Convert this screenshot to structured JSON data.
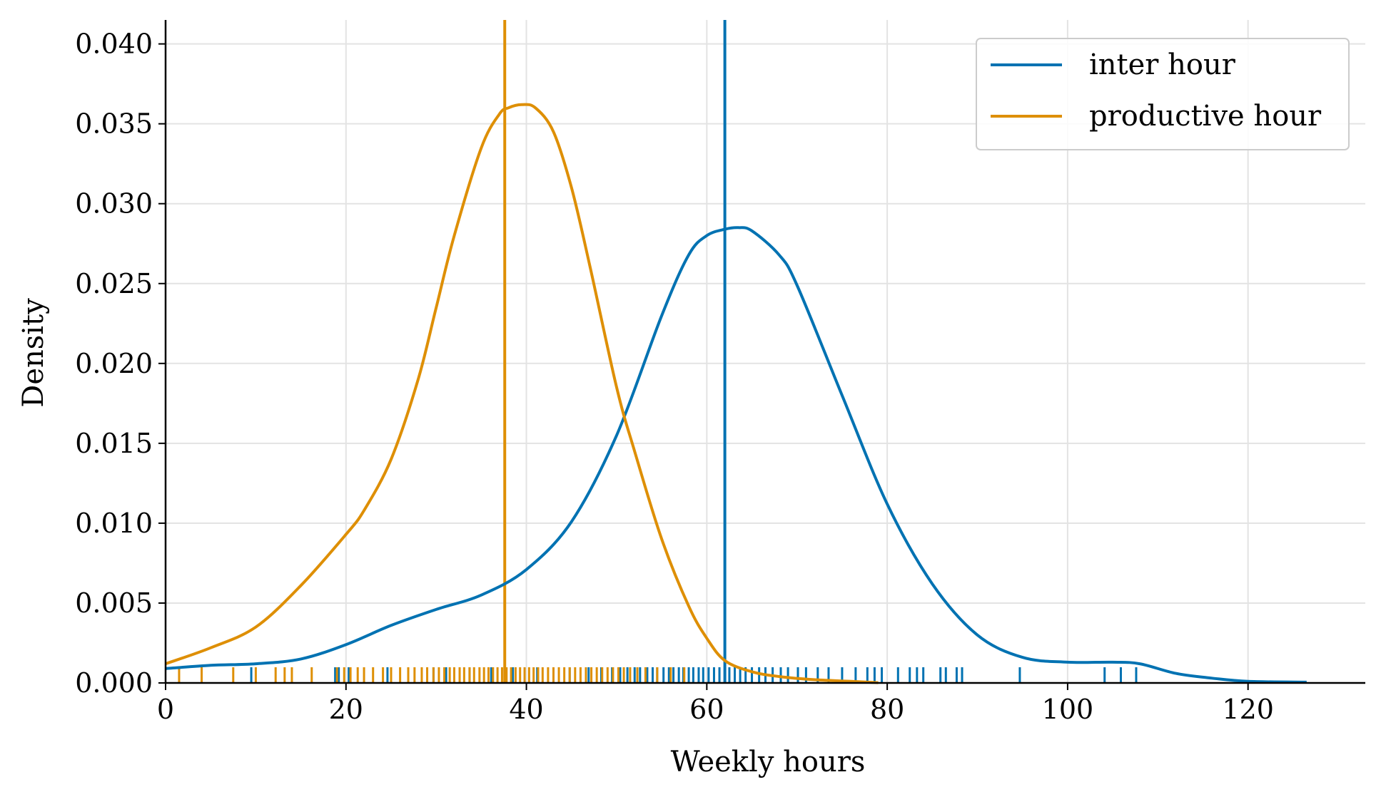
{
  "chart_data": {
    "type": "line",
    "title": "",
    "xlabel": "Weekly hours",
    "ylabel": "Density",
    "xlim": [
      0,
      133
    ],
    "ylim": [
      0,
      0.0415
    ],
    "x_ticks": [
      0,
      20,
      40,
      60,
      80,
      100,
      120
    ],
    "x_tick_labels": [
      "0",
      "20",
      "40",
      "60",
      "80",
      "100",
      "120"
    ],
    "y_ticks": [
      0,
      0.005,
      0.01,
      0.015,
      0.02,
      0.025,
      0.03,
      0.035,
      0.04
    ],
    "y_tick_labels": [
      "0.000",
      "0.005",
      "0.010",
      "0.015",
      "0.020",
      "0.025",
      "0.030",
      "0.035",
      "0.040"
    ],
    "grid": true,
    "legend_position": "top-right",
    "series": [
      {
        "name": "inter hour",
        "color": "#0072b2",
        "mean_line": 62,
        "x": [
          0,
          5,
          10,
          15,
          20,
          25,
          30,
          35,
          40,
          45,
          50,
          55,
          58,
          60,
          62,
          63.5,
          65,
          68,
          70,
          75,
          80,
          85,
          90,
          95,
          100,
          105,
          108,
          112,
          116,
          120,
          126.5
        ],
        "y": [
          0.0009,
          0.0011,
          0.0012,
          0.0015,
          0.0024,
          0.0036,
          0.0046,
          0.0055,
          0.0071,
          0.0101,
          0.0155,
          0.023,
          0.0268,
          0.028,
          0.0284,
          0.0285,
          0.0283,
          0.0268,
          0.0249,
          0.018,
          0.0112,
          0.0062,
          0.003,
          0.0016,
          0.0013,
          0.0013,
          0.0012,
          0.0006,
          0.0003,
          0.0001,
          5e-05
        ],
        "rug": [
          9.5,
          18.8,
          19.2,
          20.3,
          24.6,
          26.9,
          29.7,
          31.1,
          33.7,
          36.1,
          38.5,
          41.2,
          44.8,
          46.9,
          48.3,
          49.5,
          50.4,
          51.2,
          52.0,
          52.6,
          53.4,
          54.0,
          54.5,
          55.2,
          55.8,
          56.3,
          56.9,
          57.4,
          58.0,
          58.5,
          59.1,
          59.6,
          60.2,
          60.8,
          61.4,
          62.0,
          62.5,
          63.1,
          63.7,
          64.3,
          65.0,
          65.8,
          66.5,
          67.3,
          68.2,
          69.0,
          70.1,
          71.0,
          72.3,
          73.5,
          75.0,
          76.5,
          77.8,
          78.6,
          79.4,
          81.2,
          82.5,
          83.3,
          84.0,
          85.9,
          86.5,
          87.7,
          88.3,
          94.7,
          104.1,
          105.9,
          107.6
        ]
      },
      {
        "name": "productive hour",
        "color": "#de8f05",
        "mean_line": 37.6,
        "x": [
          0,
          5,
          10,
          15,
          20,
          22,
          25,
          28,
          30,
          32,
          35,
          37,
          38,
          39.5,
          41,
          43,
          45,
          47,
          50,
          52,
          55,
          58,
          60,
          62,
          65,
          68,
          72,
          76,
          79
        ],
        "y": [
          0.0012,
          0.0022,
          0.0035,
          0.0061,
          0.0093,
          0.0108,
          0.014,
          0.019,
          0.0235,
          0.028,
          0.0335,
          0.0356,
          0.036,
          0.0362,
          0.036,
          0.0345,
          0.031,
          0.0262,
          0.0185,
          0.0145,
          0.009,
          0.0048,
          0.0028,
          0.0014,
          0.0007,
          0.0004,
          0.0002,
          0.0001,
          2e-05
        ],
        "rug": [
          1.5,
          4.0,
          7.5,
          10.0,
          12.2,
          13.2,
          14.0,
          16.2,
          19.0,
          19.8,
          20.5,
          21.3,
          22.0,
          23.0,
          24.1,
          25.0,
          26.0,
          26.9,
          27.6,
          28.4,
          29.0,
          29.7,
          30.3,
          30.9,
          31.5,
          32.0,
          32.6,
          33.1,
          33.7,
          34.2,
          34.8,
          35.3,
          35.8,
          36.3,
          36.8,
          37.3,
          37.8,
          38.3,
          38.8,
          39.3,
          39.8,
          40.3,
          40.8,
          41.3,
          41.8,
          42.4,
          43.0,
          43.6,
          44.2,
          44.8,
          45.4,
          46.0,
          46.6,
          47.2,
          47.8,
          48.4,
          49.0,
          49.6,
          50.2,
          50.8,
          51.5,
          52.3,
          53.2,
          54.5,
          56.0,
          57.5
        ]
      }
    ]
  }
}
